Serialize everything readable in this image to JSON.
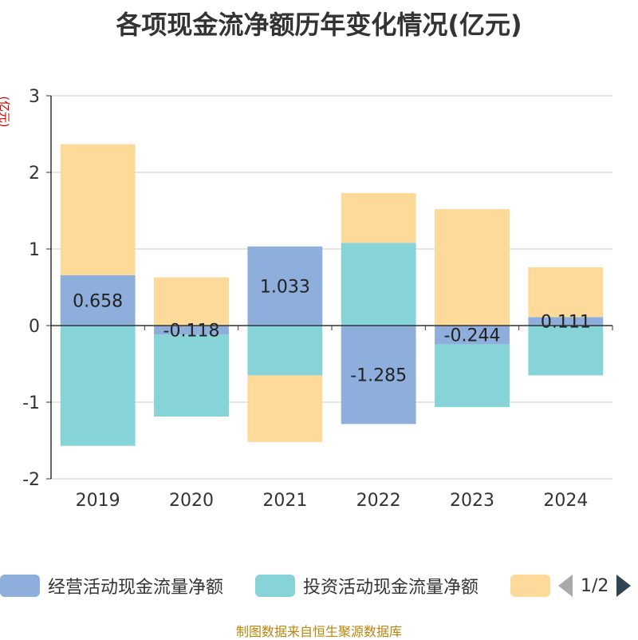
{
  "chart_data": {
    "type": "bar",
    "stacked": true,
    "title": "各项现金流净额历年变化情况(亿元)",
    "ylabel": "(亿元)",
    "xlabel": "",
    "categories": [
      "2019",
      "2020",
      "2021",
      "2022",
      "2023",
      "2024"
    ],
    "ylim": [
      -2,
      3
    ],
    "yticks": [
      -2,
      -1,
      0,
      1,
      2,
      3
    ],
    "grid": true,
    "series": [
      {
        "name": "经营活动现金流量净额",
        "values": [
          0.658,
          -0.118,
          1.033,
          -1.285,
          -0.244,
          0.111
        ],
        "color": "#8eaedb",
        "show_labels": true
      },
      {
        "name": "投资活动现金流量净额",
        "values": [
          -1.57,
          -1.07,
          -0.65,
          1.08,
          -0.82,
          -0.65
        ],
        "color": "#86d4d8",
        "show_labels": false
      },
      {
        "name": "",
        "values": [
          1.71,
          0.63,
          -0.87,
          0.65,
          1.52,
          0.65
        ],
        "color": "#fdd99a",
        "show_labels": false
      }
    ]
  },
  "legend": {
    "items": [
      {
        "label": "经营活动现金流量净额",
        "color": "#8eaedb"
      },
      {
        "label": "投资活动现金流量净额",
        "color": "#86d4d8"
      },
      {
        "label": "",
        "color": "#fdd99a"
      }
    ],
    "page_indicator": "1/2",
    "prev_icon": "triangle-left-icon",
    "next_icon": "triangle-right-icon"
  },
  "source_text": "制图数据来自恒生聚源数据库"
}
